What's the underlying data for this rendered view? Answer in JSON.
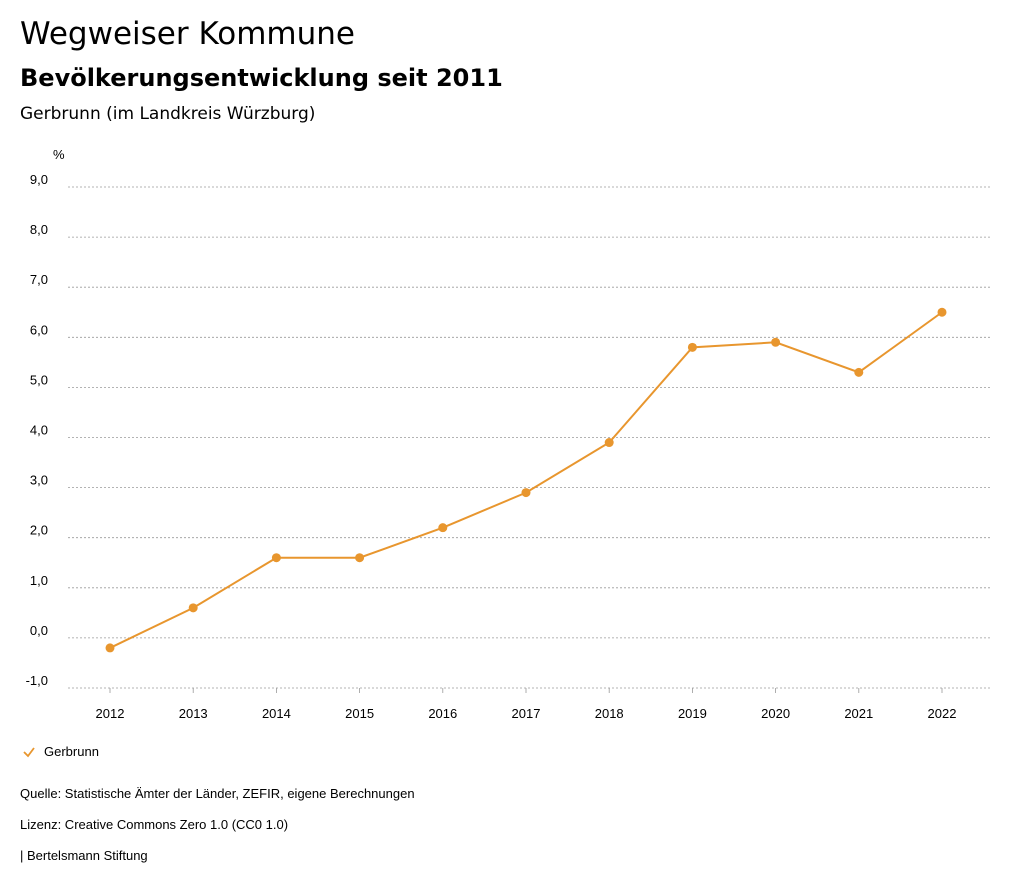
{
  "header": {
    "title": "Wegweiser Kommune",
    "subtitle": "Bevölkerungsentwicklung seit 2011",
    "region": "Gerbrunn (im Landkreis Würzburg)"
  },
  "chart_data": {
    "type": "line",
    "title": "Bevölkerungsentwicklung seit 2011",
    "xlabel": "",
    "ylabel": "%",
    "categories": [
      "2012",
      "2013",
      "2014",
      "2015",
      "2016",
      "2017",
      "2018",
      "2019",
      "2020",
      "2021",
      "2022"
    ],
    "series": [
      {
        "name": "Gerbrunn",
        "color": "#e8962e",
        "values": [
          -0.2,
          0.6,
          1.6,
          1.6,
          2.2,
          2.9,
          3.9,
          5.8,
          5.9,
          5.3,
          6.5
        ]
      }
    ],
    "ylim": [
      -1,
      9
    ],
    "yticks": [
      -1,
      0,
      1,
      2,
      3,
      4,
      5,
      6,
      7,
      8,
      9
    ],
    "ytick_labels": [
      "-1,0",
      "0,0",
      "1,0",
      "2,0",
      "3,0",
      "4,0",
      "5,0",
      "6,0",
      "7,0",
      "8,0",
      "9,0"
    ],
    "grid": true,
    "legend_position": "bottom-left"
  },
  "legend": {
    "label": "Gerbrunn",
    "icon": "check-icon",
    "color": "#e8962e"
  },
  "footer": {
    "source": "Quelle: Statistische Ämter der Länder, ZEFIR, eigene Berechnungen",
    "license": "Lizenz: Creative Commons Zero 1.0 (CC0 1.0)",
    "publisher": "| Bertelsmann Stiftung"
  }
}
